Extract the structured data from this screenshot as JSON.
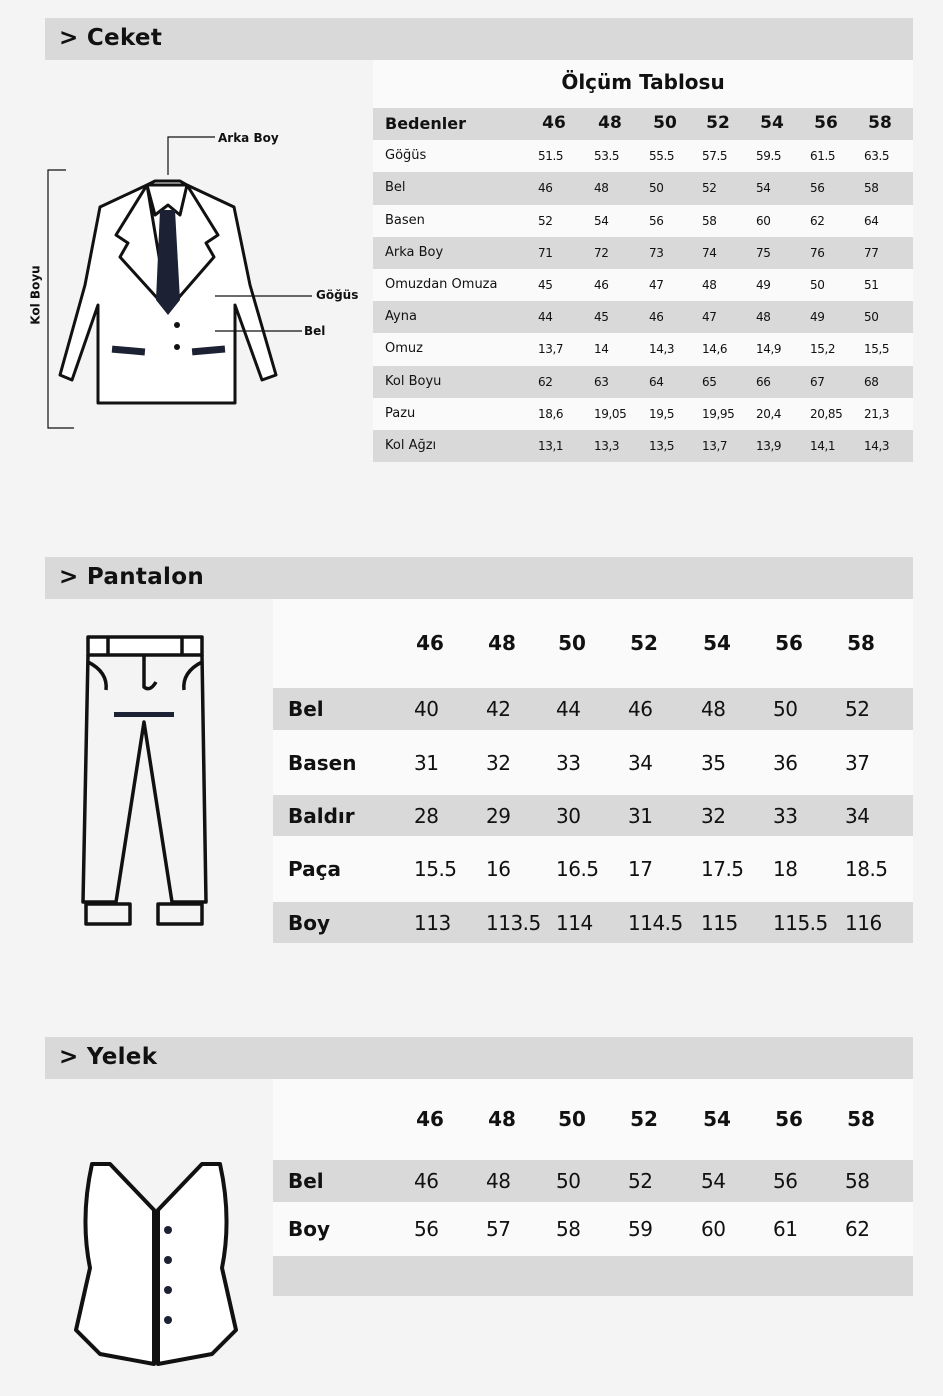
{
  "sizes": [
    "46",
    "48",
    "50",
    "52",
    "54",
    "56",
    "58"
  ],
  "ceket": {
    "section_title": "> Ceket",
    "table_title": "Ölçüm Tablosu",
    "header_label": "Bedenler",
    "rows": [
      {
        "label": "Göğüs",
        "values": [
          "51.5",
          "53.5",
          "55.5",
          "57.5",
          "59.5",
          "61.5",
          "63.5"
        ]
      },
      {
        "label": "Bel",
        "values": [
          "46",
          "48",
          "50",
          "52",
          "54",
          "56",
          "58"
        ]
      },
      {
        "label": "Basen",
        "values": [
          "52",
          "54",
          "56",
          "58",
          "60",
          "62",
          "64"
        ]
      },
      {
        "label": "Arka Boy",
        "values": [
          "71",
          "72",
          "73",
          "74",
          "75",
          "76",
          "77"
        ]
      },
      {
        "label": "Omuzdan Omuza",
        "values": [
          "45",
          "46",
          "47",
          "48",
          "49",
          "50",
          "51"
        ]
      },
      {
        "label": "Ayna",
        "values": [
          "44",
          "45",
          "46",
          "47",
          "48",
          "49",
          "50"
        ]
      },
      {
        "label": "Omuz",
        "values": [
          "13,7",
          "14",
          "14,3",
          "14,6",
          "14,9",
          "15,2",
          "15,5"
        ]
      },
      {
        "label": "Kol Boyu",
        "values": [
          "62",
          "63",
          "64",
          "65",
          "66",
          "67",
          "68"
        ]
      },
      {
        "label": "Pazu",
        "values": [
          "18,6",
          "19,05",
          "19,5",
          "19,95",
          "20,4",
          "20,85",
          "21,3"
        ]
      },
      {
        "label": "Kol Ağzı",
        "values": [
          "13,1",
          "13,3",
          "13,5",
          "13,7",
          "13,9",
          "14,1",
          "14,3"
        ]
      }
    ],
    "diagram_labels": {
      "arka_boy": "Arka Boy",
      "gogus": "Göğüs",
      "bel": "Bel",
      "kol_boyu": "Kol Boyu"
    }
  },
  "pantalon": {
    "section_title": "> Pantalon",
    "rows": [
      {
        "label": "Bel",
        "values": [
          "40",
          "42",
          "44",
          "46",
          "48",
          "50",
          "52"
        ]
      },
      {
        "label": "Basen",
        "values": [
          "31",
          "32",
          "33",
          "34",
          "35",
          "36",
          "37"
        ]
      },
      {
        "label": "Baldır",
        "values": [
          "28",
          "29",
          "30",
          "31",
          "32",
          "33",
          "34"
        ]
      },
      {
        "label": "Paça",
        "values": [
          "15.5",
          "16",
          "16.5",
          "17",
          "17.5",
          "18",
          "18.5"
        ]
      },
      {
        "label": "Boy",
        "values": [
          "113",
          "113.5",
          "114",
          "114.5",
          "115",
          "115.5",
          "116"
        ]
      }
    ]
  },
  "yelek": {
    "section_title": "> Yelek",
    "rows": [
      {
        "label": "Bel",
        "values": [
          "46",
          "48",
          "50",
          "52",
          "54",
          "56",
          "58"
        ]
      },
      {
        "label": "Boy",
        "values": [
          "56",
          "57",
          "58",
          "59",
          "60",
          "61",
          "62"
        ]
      }
    ]
  },
  "colors": {
    "band": "#d9d9d9",
    "panel": "#fafafa",
    "ink": "#111111",
    "tie": "#1c2233"
  }
}
